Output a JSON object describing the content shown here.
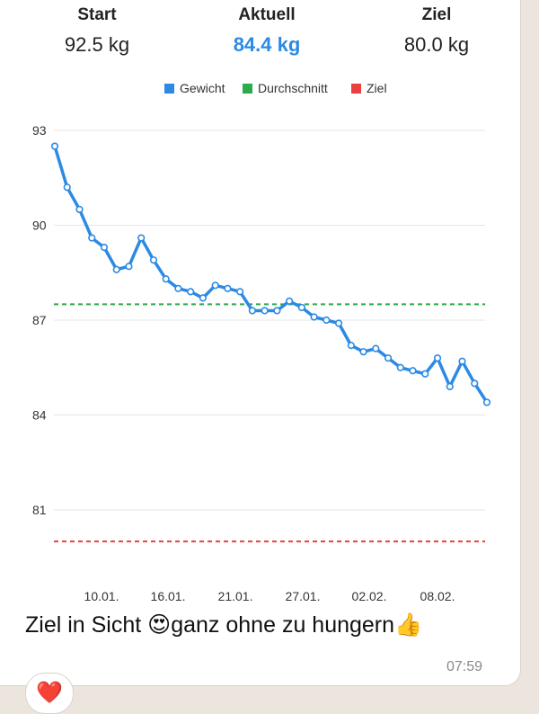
{
  "stats": {
    "start": {
      "label": "Start",
      "value": "92.5 kg"
    },
    "current": {
      "label": "Aktuell",
      "value": "84.4 kg"
    },
    "goal": {
      "label": "Ziel",
      "value": "80.0 kg"
    }
  },
  "colors": {
    "weight": "#2c8ae4",
    "average": "#2daa4a",
    "goal": "#e8413f"
  },
  "chart_data": {
    "type": "line",
    "legend": [
      "Gewicht",
      "Durchschnitt",
      "Ziel"
    ],
    "legend_position": "top",
    "grid": true,
    "ylim": [
      81,
      93
    ],
    "y_ticks": [
      "93",
      "90",
      "87",
      "84",
      "81"
    ],
    "x_ticks": [
      "10.01.",
      "16.01.",
      "21.01.",
      "27.01.",
      "02.02.",
      "08.02."
    ],
    "series": [
      {
        "name": "Gewicht",
        "values": [
          92.5,
          91.2,
          90.5,
          89.6,
          89.3,
          88.6,
          88.7,
          89.6,
          88.9,
          88.3,
          88.0,
          87.9,
          87.7,
          88.1,
          88.0,
          87.9,
          87.3,
          87.3,
          87.3,
          87.6,
          87.4,
          87.1,
          87.0,
          86.9,
          86.2,
          86.0,
          86.1,
          85.8,
          85.5,
          85.4,
          85.3,
          85.8,
          84.9,
          85.7,
          85.0,
          84.4
        ]
      }
    ],
    "average": 87.5,
    "goal": 80.0
  },
  "message": {
    "text": "Ziel in Sicht 😍ganz ohne zu hungern👍",
    "time": "07:59"
  },
  "reaction": "❤️"
}
